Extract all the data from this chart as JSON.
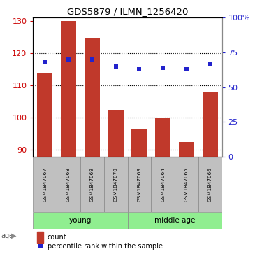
{
  "title": "GDS5879 / ILMN_1256420",
  "samples": [
    "GSM1847067",
    "GSM1847068",
    "GSM1847069",
    "GSM1847070",
    "GSM1847063",
    "GSM1847064",
    "GSM1847065",
    "GSM1847066"
  ],
  "counts": [
    114,
    130,
    124.5,
    102.5,
    96.5,
    100,
    92.5,
    108
  ],
  "percentile_ranks": [
    68,
    70,
    70,
    65,
    63,
    64,
    63,
    67
  ],
  "ylim_left": [
    88,
    131
  ],
  "ylim_right": [
    0,
    100
  ],
  "yticks_left": [
    90,
    100,
    110,
    120,
    130
  ],
  "yticks_right": [
    0,
    25,
    50,
    75,
    100
  ],
  "ytick_labels_right": [
    "0",
    "25",
    "50",
    "75",
    "100%"
  ],
  "groups": [
    {
      "label": "young",
      "indices": [
        0,
        1,
        2,
        3
      ],
      "color": "#90EE90"
    },
    {
      "label": "middle age",
      "indices": [
        4,
        5,
        6,
        7
      ],
      "color": "#90EE90"
    }
  ],
  "bar_color": "#C0392B",
  "dot_color": "#2222CC",
  "bar_bottom": 88,
  "age_label": "age",
  "legend_count_label": "count",
  "legend_pct_label": "percentile rank within the sample",
  "tick_color_left": "#CC0000",
  "tick_color_right": "#2222CC",
  "sample_box_color": "#C0C0C0",
  "group_box_color": "#90EE90",
  "gridline_yticks": [
    90,
    100,
    110,
    120
  ]
}
